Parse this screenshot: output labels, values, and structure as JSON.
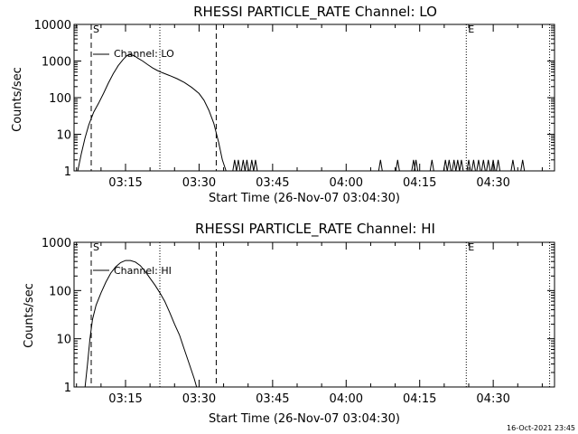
{
  "footer": {
    "timestamp": "16-Oct-2021 23:45"
  },
  "chart_data": [
    {
      "type": "line",
      "title": "RHESSI PARTICLE_RATE Channel: LO",
      "xlabel": "Start Time (26-Nov-07 03:04:30)",
      "ylabel": "Counts/sec",
      "y_scale": "log",
      "ylim": [
        1,
        10000
      ],
      "y_ticks": [
        1,
        10,
        100,
        1000,
        10000
      ],
      "y_tick_labels": [
        "1",
        "10",
        "100",
        "1000",
        "10000"
      ],
      "xlim": [
        "03:04:30",
        "04:42:30"
      ],
      "x_ticks": [
        "03:15",
        "03:30",
        "03:45",
        "04:00",
        "04:15",
        "04:30"
      ],
      "legend": "Channel: LO",
      "markers": [
        {
          "label": "S",
          "time": "03:08:00",
          "style": "dashed"
        },
        {
          "label": "",
          "time": "03:22:00",
          "style": "dotted"
        },
        {
          "label": "",
          "time": "03:33:30",
          "style": "dashed"
        },
        {
          "label": "E",
          "time": "04:24:30",
          "style": "dotted"
        },
        {
          "label": "",
          "time": "04:41:30",
          "style": "dotted"
        }
      ],
      "series": [
        {
          "points": [
            [
              "03:05:15",
              1
            ],
            [
              "03:06:00",
              3
            ],
            [
              "03:06:45",
              8
            ],
            [
              "03:07:30",
              18
            ],
            [
              "03:08:30",
              40
            ],
            [
              "03:09:30",
              70
            ],
            [
              "03:10:30",
              130
            ],
            [
              "03:11:30",
              250
            ],
            [
              "03:12:30",
              450
            ],
            [
              "03:13:30",
              750
            ],
            [
              "03:14:30",
              1100
            ],
            [
              "03:15:15",
              1400
            ],
            [
              "03:16:00",
              1500
            ],
            [
              "03:16:45",
              1400
            ],
            [
              "03:17:30",
              1200
            ],
            [
              "03:18:30",
              1000
            ],
            [
              "03:19:30",
              800
            ],
            [
              "03:20:30",
              650
            ],
            [
              "03:21:30",
              550
            ],
            [
              "03:22:30",
              480
            ],
            [
              "03:24:00",
              400
            ],
            [
              "03:25:30",
              330
            ],
            [
              "03:27:00",
              260
            ],
            [
              "03:28:30",
              190
            ],
            [
              "03:30:00",
              130
            ],
            [
              "03:31:00",
              85
            ],
            [
              "03:32:00",
              45
            ],
            [
              "03:33:00",
              20
            ],
            [
              "03:34:00",
              6
            ],
            [
              "03:34:45",
              2
            ],
            [
              "03:35:30",
              1
            ]
          ]
        },
        {
          "name_hidden": true,
          "spikes": [
            "03:37:15",
            "03:38:00",
            "03:39:00",
            "03:39:45",
            "03:40:45",
            "03:41:30",
            "04:07:00",
            "04:10:30",
            "04:13:45",
            "04:14:15",
            "04:17:30",
            "04:20:15",
            "04:21:00",
            "04:22:00",
            "04:22:45",
            "04:23:30",
            "04:25:00",
            "04:26:00",
            "04:27:00",
            "04:28:00",
            "04:29:00",
            "04:30:00",
            "04:31:00",
            "04:34:00",
            "04:36:00"
          ],
          "spike_value": 2
        }
      ]
    },
    {
      "type": "line",
      "title": "RHESSI PARTICLE_RATE Channel: HI",
      "xlabel": "Start Time (26-Nov-07 03:04:30)",
      "ylabel": "Counts/sec",
      "y_scale": "log",
      "ylim": [
        1,
        1000
      ],
      "y_ticks": [
        1,
        10,
        100,
        1000
      ],
      "y_tick_labels": [
        "1",
        "10",
        "100",
        "1000"
      ],
      "xlim": [
        "03:04:30",
        "04:42:30"
      ],
      "x_ticks": [
        "03:15",
        "03:30",
        "03:45",
        "04:00",
        "04:15",
        "04:30"
      ],
      "legend": "Channel: HI",
      "markers": [
        {
          "label": "S",
          "time": "03:08:00",
          "style": "dashed"
        },
        {
          "label": "",
          "time": "03:22:00",
          "style": "dotted"
        },
        {
          "label": "",
          "time": "03:33:30",
          "style": "dashed"
        },
        {
          "label": "E",
          "time": "04:24:30",
          "style": "dotted"
        },
        {
          "label": "",
          "time": "04:41:30",
          "style": "dotted"
        }
      ],
      "series": [
        {
          "points": [
            [
              "03:06:45",
              1
            ],
            [
              "03:07:15",
              3
            ],
            [
              "03:07:45",
              10
            ],
            [
              "03:08:15",
              25
            ],
            [
              "03:09:00",
              50
            ],
            [
              "03:10:00",
              90
            ],
            [
              "03:11:00",
              150
            ],
            [
              "03:12:00",
              230
            ],
            [
              "03:13:00",
              310
            ],
            [
              "03:14:00",
              380
            ],
            [
              "03:15:00",
              420
            ],
            [
              "03:16:00",
              420
            ],
            [
              "03:17:00",
              390
            ],
            [
              "03:18:00",
              330
            ],
            [
              "03:19:00",
              250
            ],
            [
              "03:20:00",
              180
            ],
            [
              "03:21:00",
              130
            ],
            [
              "03:22:00",
              90
            ],
            [
              "03:23:00",
              60
            ],
            [
              "03:24:00",
              35
            ],
            [
              "03:25:00",
              20
            ],
            [
              "03:26:00",
              12
            ],
            [
              "03:27:00",
              6
            ],
            [
              "03:28:00",
              3
            ],
            [
              "03:29:00",
              1.5
            ],
            [
              "03:29:30",
              1
            ]
          ]
        }
      ]
    }
  ]
}
